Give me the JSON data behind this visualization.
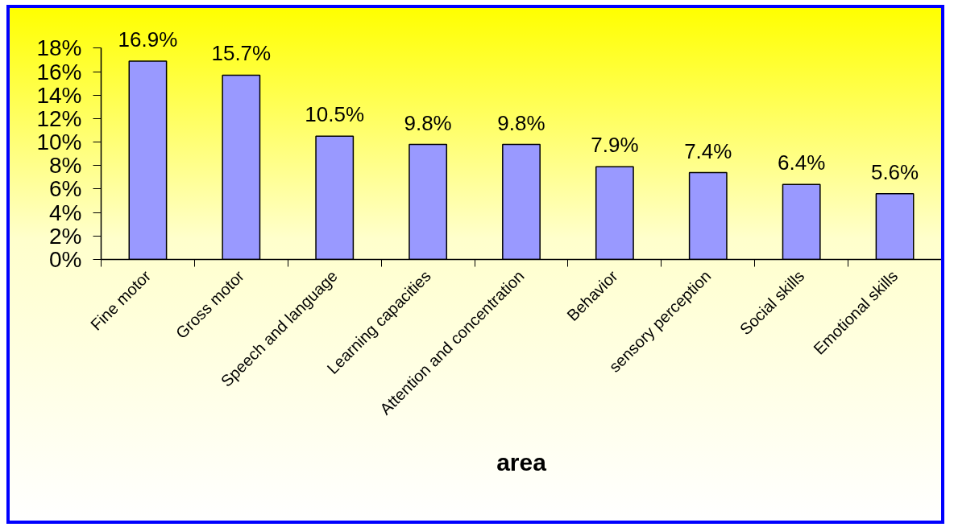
{
  "chart_data": {
    "type": "bar",
    "xlabel": "area",
    "categories": [
      "Fine motor",
      "Gross motor",
      "Speech and language",
      "Learning capacities",
      "Attention and concentration",
      "Behavior",
      "sensory perception",
      "Social skills",
      "Emotional skills"
    ],
    "values": [
      16.9,
      15.7,
      10.5,
      9.8,
      9.8,
      7.9,
      7.4,
      6.4,
      5.6
    ],
    "value_labels": [
      "16.9%",
      "15.7%",
      "10.5%",
      "9.8%",
      "9.8%",
      "7.9%",
      "7.4%",
      "6.4%",
      "5.6%"
    ],
    "color": "#9999ff",
    "ylim": [
      0,
      18
    ],
    "yticks": [
      {
        "value": 0,
        "label": "0%"
      },
      {
        "value": 2,
        "label": "2%"
      },
      {
        "value": 4,
        "label": "4%"
      },
      {
        "value": 6,
        "label": "6%"
      },
      {
        "value": 8,
        "label": "8%"
      },
      {
        "value": 10,
        "label": "10%"
      },
      {
        "value": 12,
        "label": "12%"
      },
      {
        "value": 14,
        "label": "14%"
      },
      {
        "value": 16,
        "label": "16%"
      },
      {
        "value": 18,
        "label": "18%"
      }
    ],
    "grid": false
  }
}
